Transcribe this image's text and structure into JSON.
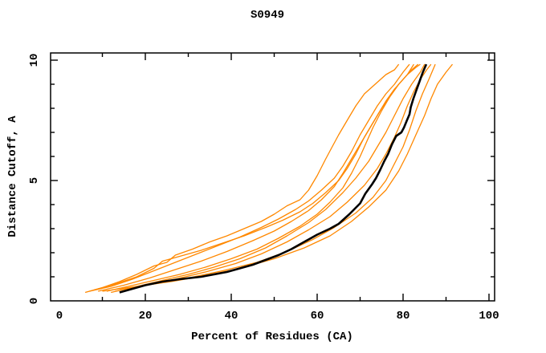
{
  "window": {
    "title": "S0949"
  },
  "chart_data": {
    "type": "line",
    "title": "S0949",
    "xlabel": "Percent of Residues (CA)",
    "ylabel": "Distance Cutoff, A",
    "xlim": [
      0,
      100
    ],
    "ylim": [
      0,
      10
    ],
    "x_tick_labels": [
      0,
      20,
      40,
      60,
      80,
      100
    ],
    "x_minor_tick_step": 10,
    "y_tick_labels": [
      0,
      5,
      10
    ],
    "y_minor_tick_step": 1,
    "grid": false,
    "legend": "none",
    "colors": {
      "model_line": "#ff8800",
      "highlight_line": "#000000",
      "frame": "#000000",
      "background": "#ffffff"
    },
    "series": [
      {
        "name": "black-highlight-curve",
        "color": "#000000",
        "width": 2.6,
        "points": [
          [
            14,
            0.35
          ],
          [
            17,
            0.5
          ],
          [
            20,
            0.65
          ],
          [
            24,
            0.8
          ],
          [
            28,
            0.9
          ],
          [
            33,
            1.0
          ],
          [
            36,
            1.1
          ],
          [
            39,
            1.2
          ],
          [
            42,
            1.35
          ],
          [
            45,
            1.5
          ],
          [
            48,
            1.7
          ],
          [
            51,
            1.9
          ],
          [
            54,
            2.15
          ],
          [
            57,
            2.45
          ],
          [
            60,
            2.75
          ],
          [
            63,
            3.0
          ],
          [
            65,
            3.2
          ],
          [
            67.5,
            3.6
          ],
          [
            70,
            4.05
          ],
          [
            71.2,
            4.45
          ],
          [
            72.8,
            4.85
          ],
          [
            73.7,
            5.1
          ],
          [
            74.7,
            5.45
          ],
          [
            75.6,
            5.8
          ],
          [
            76.5,
            6.1
          ],
          [
            77.4,
            6.5
          ],
          [
            78.4,
            6.85
          ],
          [
            79.6,
            7.0
          ],
          [
            80.2,
            7.2
          ],
          [
            80.9,
            7.5
          ],
          [
            81.5,
            7.75
          ],
          [
            81.8,
            8.05
          ],
          [
            82.4,
            8.4
          ],
          [
            83,
            8.7
          ],
          [
            83.7,
            9.05
          ],
          [
            84.6,
            9.5
          ],
          [
            85.4,
            9.83
          ]
        ]
      },
      {
        "name": "orange-model-1",
        "color": "#ff8800",
        "width": 1.3,
        "points": [
          [
            6,
            0.35
          ],
          [
            10,
            0.55
          ],
          [
            14,
            0.8
          ],
          [
            18,
            1.1
          ],
          [
            22,
            1.45
          ],
          [
            25,
            1.6
          ],
          [
            27,
            1.9
          ],
          [
            31,
            2.15
          ],
          [
            35,
            2.45
          ],
          [
            39,
            2.7
          ],
          [
            43,
            3.0
          ],
          [
            47,
            3.3
          ],
          [
            50,
            3.6
          ],
          [
            53,
            3.95
          ],
          [
            56,
            4.2
          ],
          [
            58,
            4.6
          ],
          [
            60,
            5.2
          ],
          [
            62,
            5.9
          ],
          [
            63.5,
            6.4
          ],
          [
            65,
            6.9
          ],
          [
            67,
            7.5
          ],
          [
            69,
            8.1
          ],
          [
            71,
            8.6
          ],
          [
            73.5,
            9.0
          ],
          [
            76,
            9.4
          ],
          [
            78,
            9.6
          ],
          [
            79,
            9.83
          ]
        ]
      },
      {
        "name": "orange-model-2",
        "color": "#ff8800",
        "width": 1.3,
        "points": [
          [
            7,
            0.4
          ],
          [
            12,
            0.6
          ],
          [
            17,
            0.9
          ],
          [
            22,
            1.25
          ],
          [
            27,
            1.6
          ],
          [
            32,
            1.95
          ],
          [
            37,
            2.3
          ],
          [
            42,
            2.65
          ],
          [
            47,
            3.05
          ],
          [
            51,
            3.4
          ],
          [
            55,
            3.8
          ],
          [
            58,
            4.15
          ],
          [
            61,
            4.6
          ],
          [
            64,
            5.1
          ],
          [
            66,
            5.6
          ],
          [
            68,
            6.2
          ],
          [
            70,
            6.9
          ],
          [
            72,
            7.5
          ],
          [
            74,
            8.1
          ],
          [
            76,
            8.6
          ],
          [
            78,
            9.0
          ],
          [
            80,
            9.5
          ],
          [
            81.5,
            9.83
          ]
        ]
      },
      {
        "name": "orange-model-3",
        "color": "#ff8800",
        "width": 1.3,
        "points": [
          [
            8,
            0.45
          ],
          [
            13,
            0.7
          ],
          [
            18,
            1.0
          ],
          [
            22,
            1.35
          ],
          [
            24,
            1.65
          ],
          [
            28,
            1.85
          ],
          [
            33,
            2.1
          ],
          [
            38,
            2.4
          ],
          [
            43,
            2.7
          ],
          [
            48,
            3.05
          ],
          [
            52,
            3.35
          ],
          [
            56,
            3.7
          ],
          [
            59,
            4.05
          ],
          [
            62,
            4.5
          ],
          [
            65,
            5.0
          ],
          [
            67,
            5.5
          ],
          [
            69,
            6.1
          ],
          [
            71,
            6.8
          ],
          [
            73,
            7.4
          ],
          [
            75,
            8.0
          ],
          [
            77,
            8.5
          ],
          [
            79,
            9.0
          ],
          [
            81,
            9.4
          ],
          [
            82.5,
            9.83
          ]
        ]
      },
      {
        "name": "orange-model-4",
        "color": "#ff8800",
        "width": 1.3,
        "points": [
          [
            9,
            0.4
          ],
          [
            15,
            0.65
          ],
          [
            21,
            0.95
          ],
          [
            27,
            1.3
          ],
          [
            33,
            1.65
          ],
          [
            39,
            2.05
          ],
          [
            45,
            2.5
          ],
          [
            50,
            2.9
          ],
          [
            54,
            3.3
          ],
          [
            58,
            3.75
          ],
          [
            61,
            4.2
          ],
          [
            64,
            4.75
          ],
          [
            66,
            5.3
          ],
          [
            68,
            5.9
          ],
          [
            70,
            6.5
          ],
          [
            72,
            7.1
          ],
          [
            74,
            7.7
          ],
          [
            76,
            8.3
          ],
          [
            78,
            8.8
          ],
          [
            80,
            9.2
          ],
          [
            82,
            9.6
          ],
          [
            83.5,
            9.83
          ]
        ]
      },
      {
        "name": "orange-model-5",
        "color": "#ff8800",
        "width": 1.3,
        "points": [
          [
            11,
            0.4
          ],
          [
            16,
            0.6
          ],
          [
            22,
            0.85
          ],
          [
            28,
            1.1
          ],
          [
            34,
            1.4
          ],
          [
            40,
            1.75
          ],
          [
            46,
            2.15
          ],
          [
            51,
            2.6
          ],
          [
            56,
            3.1
          ],
          [
            60,
            3.6
          ],
          [
            63,
            4.1
          ],
          [
            66,
            4.7
          ],
          [
            68,
            5.3
          ],
          [
            70,
            6.0
          ],
          [
            71.5,
            6.6
          ],
          [
            73,
            7.2
          ],
          [
            75,
            7.9
          ],
          [
            77,
            8.5
          ],
          [
            79,
            9.0
          ],
          [
            81,
            9.4
          ],
          [
            83,
            9.7
          ],
          [
            84,
            9.83
          ]
        ]
      },
      {
        "name": "orange-model-6",
        "color": "#ff8800",
        "width": 1.3,
        "points": [
          [
            12,
            0.35
          ],
          [
            18,
            0.6
          ],
          [
            24,
            0.85
          ],
          [
            30,
            1.1
          ],
          [
            36,
            1.4
          ],
          [
            42,
            1.75
          ],
          [
            48,
            2.2
          ],
          [
            53,
            2.7
          ],
          [
            58,
            3.25
          ],
          [
            62,
            3.8
          ],
          [
            66,
            4.5
          ],
          [
            69,
            5.1
          ],
          [
            72,
            5.8
          ],
          [
            74,
            6.4
          ],
          [
            76,
            7.0
          ],
          [
            78,
            7.7
          ],
          [
            80,
            8.4
          ],
          [
            82,
            9.0
          ],
          [
            84,
            9.5
          ],
          [
            85,
            9.83
          ]
        ]
      },
      {
        "name": "orange-model-7",
        "color": "#ff8800",
        "width": 1.3,
        "points": [
          [
            13,
            0.4
          ],
          [
            20,
            0.65
          ],
          [
            27,
            0.9
          ],
          [
            34,
            1.2
          ],
          [
            41,
            1.55
          ],
          [
            47,
            1.95
          ],
          [
            53,
            2.45
          ],
          [
            58,
            2.95
          ],
          [
            63,
            3.5
          ],
          [
            67,
            4.1
          ],
          [
            71,
            4.8
          ],
          [
            74,
            5.5
          ],
          [
            76,
            6.1
          ],
          [
            78,
            6.8
          ],
          [
            79.5,
            7.4
          ],
          [
            81,
            8.1
          ],
          [
            82.5,
            8.7
          ],
          [
            84,
            9.2
          ],
          [
            85.5,
            9.6
          ],
          [
            86.5,
            9.83
          ]
        ]
      },
      {
        "name": "orange-model-8",
        "color": "#ff8800",
        "width": 1.3,
        "points": [
          [
            14,
            0.45
          ],
          [
            22,
            0.7
          ],
          [
            30,
            0.95
          ],
          [
            38,
            1.25
          ],
          [
            46,
            1.6
          ],
          [
            53,
            2.05
          ],
          [
            59,
            2.55
          ],
          [
            64,
            3.05
          ],
          [
            69,
            3.65
          ],
          [
            73,
            4.3
          ],
          [
            76,
            5.0
          ],
          [
            78,
            5.7
          ],
          [
            80,
            6.4
          ],
          [
            81.5,
            7.1
          ],
          [
            83,
            7.9
          ],
          [
            84.5,
            8.6
          ],
          [
            86,
            9.2
          ],
          [
            87.5,
            9.83
          ]
        ]
      },
      {
        "name": "orange-model-9",
        "color": "#ff8800",
        "width": 1.3,
        "points": [
          [
            10,
            0.4
          ],
          [
            18,
            0.6
          ],
          [
            26,
            0.8
          ],
          [
            34,
            1.05
          ],
          [
            42,
            1.35
          ],
          [
            50,
            1.75
          ],
          [
            57,
            2.2
          ],
          [
            63,
            2.7
          ],
          [
            68,
            3.3
          ],
          [
            72,
            3.9
          ],
          [
            76,
            4.6
          ],
          [
            79,
            5.4
          ],
          [
            81,
            6.1
          ],
          [
            83,
            6.9
          ],
          [
            85,
            7.7
          ],
          [
            86.5,
            8.4
          ],
          [
            88,
            9.0
          ],
          [
            90,
            9.5
          ],
          [
            91.5,
            9.83
          ]
        ]
      }
    ]
  }
}
